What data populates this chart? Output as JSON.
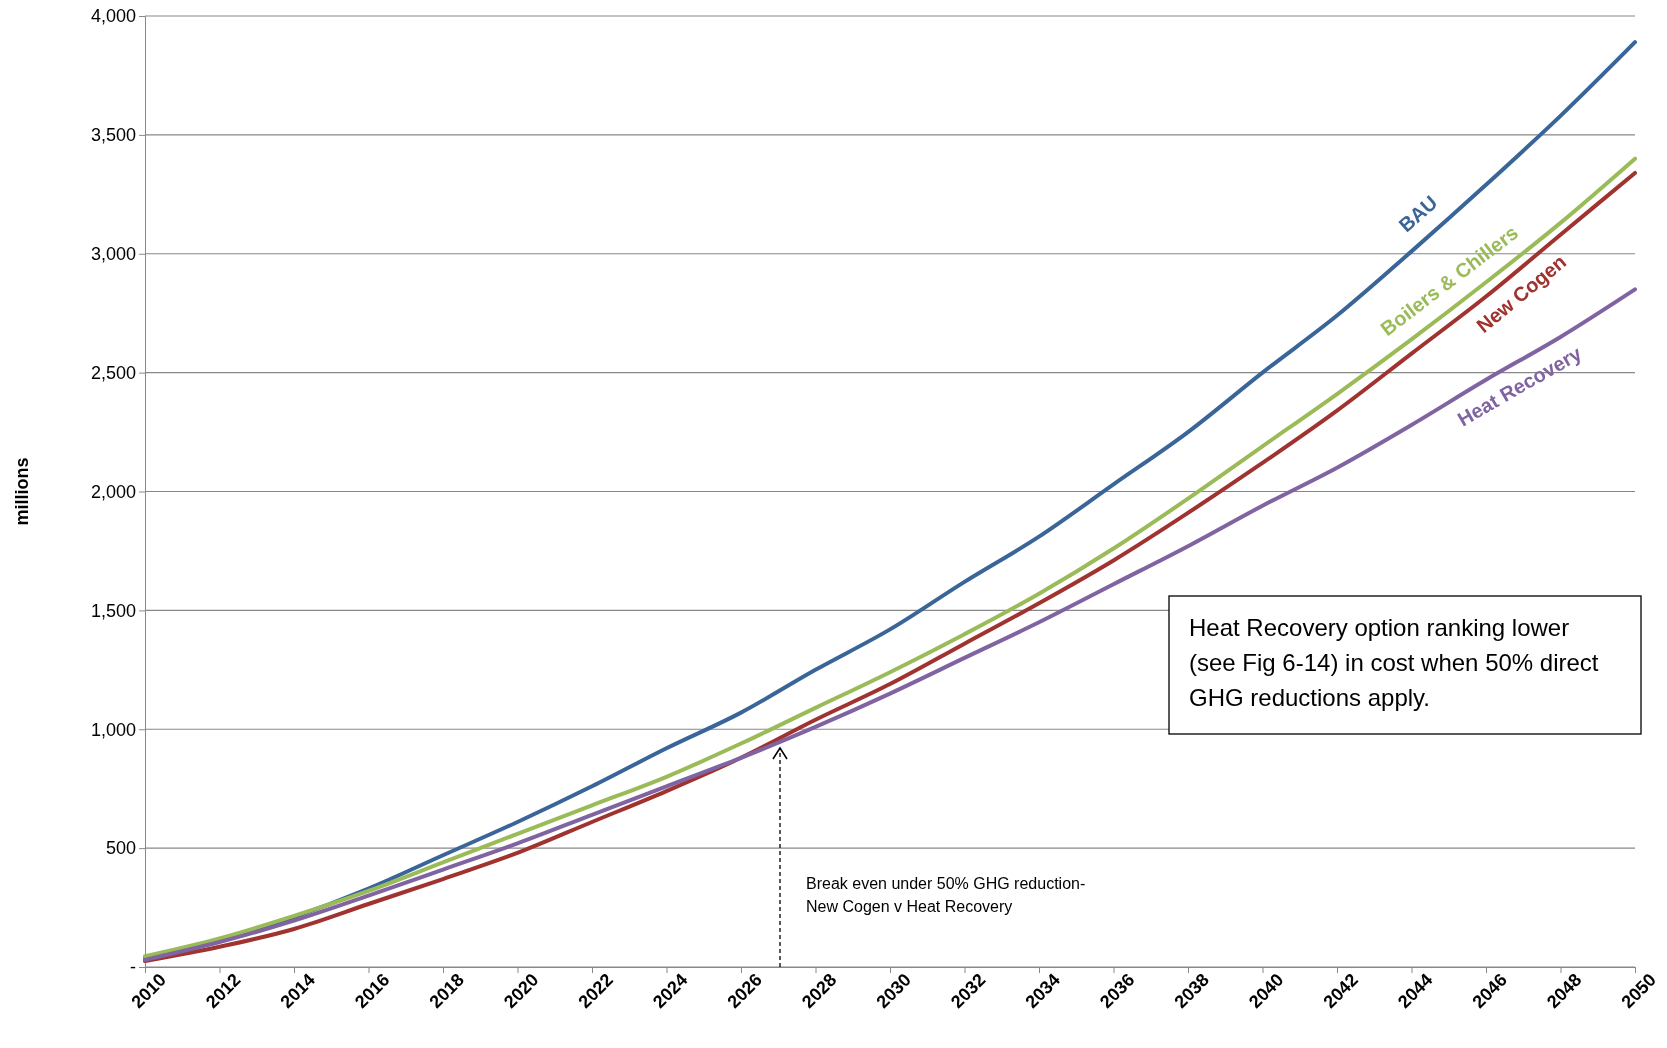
{
  "chart_data": {
    "type": "line",
    "ylabel": "millions",
    "x": [
      2010,
      2012,
      2014,
      2016,
      2018,
      2020,
      2022,
      2024,
      2026,
      2028,
      2030,
      2032,
      2034,
      2036,
      2038,
      2040,
      2042,
      2044,
      2046,
      2048,
      2050
    ],
    "series": [
      {
        "name": "BAU",
        "color": "#3a6598",
        "values": [
          40,
          110,
          210,
          330,
          470,
          610,
          760,
          920,
          1070,
          1250,
          1420,
          1620,
          1810,
          2030,
          2250,
          2500,
          2740,
          3010,
          3290,
          3580,
          3890
        ]
      },
      {
        "name": "Boilers & Chillers",
        "color": "#9bbb59",
        "values": [
          45,
          120,
          215,
          320,
          440,
          560,
          680,
          800,
          940,
          1090,
          1240,
          1400,
          1570,
          1760,
          1970,
          2190,
          2410,
          2640,
          2880,
          3130,
          3400
        ]
      },
      {
        "name": "New Cogen",
        "color": "#a0332f",
        "values": [
          25,
          85,
          160,
          265,
          370,
          480,
          610,
          740,
          880,
          1040,
          1190,
          1360,
          1530,
          1710,
          1910,
          2120,
          2340,
          2580,
          2820,
          3080,
          3340
        ]
      },
      {
        "name": "Heat Recovery",
        "color": "#8064a2",
        "values": [
          30,
          105,
          195,
          300,
          410,
          520,
          640,
          760,
          880,
          1010,
          1150,
          1300,
          1450,
          1610,
          1770,
          1940,
          2100,
          2280,
          2470,
          2650,
          2850
        ]
      }
    ],
    "xlim": [
      2010,
      2050
    ],
    "xticks": [
      2010,
      2012,
      2014,
      2016,
      2018,
      2020,
      2022,
      2024,
      2026,
      2028,
      2030,
      2032,
      2034,
      2036,
      2038,
      2040,
      2042,
      2044,
      2046,
      2048,
      2050
    ],
    "ylim": [
      0,
      4000
    ],
    "yticks": [
      {
        "value": 0,
        "label": "-"
      },
      {
        "value": 500,
        "label": "500"
      },
      {
        "value": 1000,
        "label": "1,000"
      },
      {
        "value": 1500,
        "label": "1,500"
      },
      {
        "value": 2000,
        "label": "2,000"
      },
      {
        "value": 2500,
        "label": "2,500"
      },
      {
        "value": 3000,
        "label": "3,000"
      },
      {
        "value": 3500,
        "label": "3,500"
      },
      {
        "value": 4000,
        "label": "4,000"
      }
    ],
    "grid": "y",
    "marker": "none",
    "line_style": "solid",
    "annotations": [
      "Break even under 50% GHG reduction-\nNew Cogen v Heat Recovery",
      "Heat Recovery option ranking lower (see Fig 6-14) in cost when 50% direct GHG reductions apply."
    ]
  }
}
